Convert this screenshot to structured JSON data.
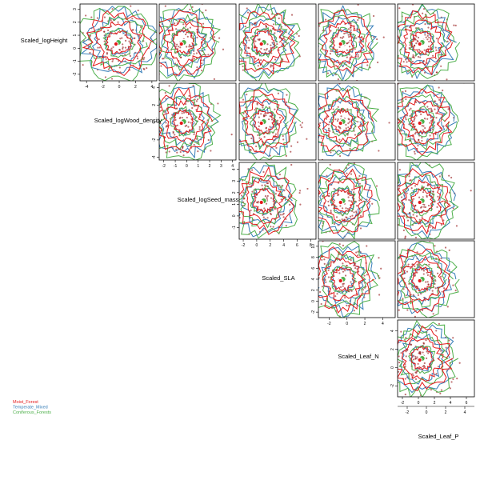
{
  "chart_data": {
    "type": "scatter",
    "layout": "pairs-matrix-upper",
    "variables": [
      "Scaled_logHeight",
      "Scaled_logWood_density",
      "Scaled_logSeed_mass",
      "Scaled_SLA",
      "Scaled_Leaf_N",
      "Scaled_Leaf_P"
    ],
    "axes": [
      {
        "ticks": [
          -4,
          -2,
          0,
          2,
          4
        ],
        "range": [
          -4.8,
          4.6
        ]
      },
      {
        "ticks": [
          -2,
          -1,
          0,
          1,
          2,
          3,
          4
        ],
        "range": [
          -2.4,
          4.3
        ]
      },
      {
        "ticks": [
          -2,
          0,
          2,
          4,
          6,
          8
        ],
        "range": [
          -2.6,
          8.8
        ]
      },
      {
        "ticks": [
          -2,
          0,
          2,
          4
        ],
        "range": [
          -3.2,
          5.4
        ]
      },
      {
        "ticks": [
          -2,
          0,
          2,
          4,
          6
        ],
        "range": [
          -2.6,
          7.0
        ]
      },
      {
        "ticks": [
          -2,
          0,
          2,
          4
        ],
        "range": [
          -3.0,
          5.0
        ]
      }
    ],
    "y_axes": [
      {
        "ticks": [
          -2,
          -1,
          0,
          1,
          2,
          3
        ],
        "range": [
          -2.5,
          3.4
        ]
      },
      {
        "ticks": [
          -4,
          -2,
          0,
          2,
          4
        ],
        "range": [
          -4.3,
          4.5
        ]
      },
      {
        "ticks": [
          -1,
          0,
          1,
          2,
          3,
          4
        ],
        "range": [
          -2.0,
          4.6
        ]
      },
      {
        "ticks": [
          -2,
          0,
          2,
          4,
          6,
          8,
          10
        ],
        "range": [
          -3.0,
          11.0
        ]
      },
      {
        "ticks": [
          -2,
          0,
          2,
          4
        ],
        "range": [
          -3.2,
          5.2
        ]
      }
    ],
    "legend": {
      "position": "bottom-left",
      "entries": [
        {
          "name": "Moist_Forest",
          "color": "#e41a1c"
        },
        {
          "name": "Temperate_Mixed",
          "color": "#377eb8"
        },
        {
          "name": "Coniferous_Forests",
          "color": "#4daf4a"
        }
      ]
    },
    "series_colors": {
      "Moist_Forest": "#e41a1c",
      "Moist_Forest_points": "#8b0000",
      "Temperate_Mixed": "#377eb8",
      "Coniferous_Forests": "#4daf4a"
    },
    "centroids": [
      {
        "series": "Moist_Forest",
        "x": 0,
        "y": 0
      },
      {
        "series": "Coniferous_Forests",
        "x": 0,
        "y": 0
      }
    ],
    "grid": false
  }
}
